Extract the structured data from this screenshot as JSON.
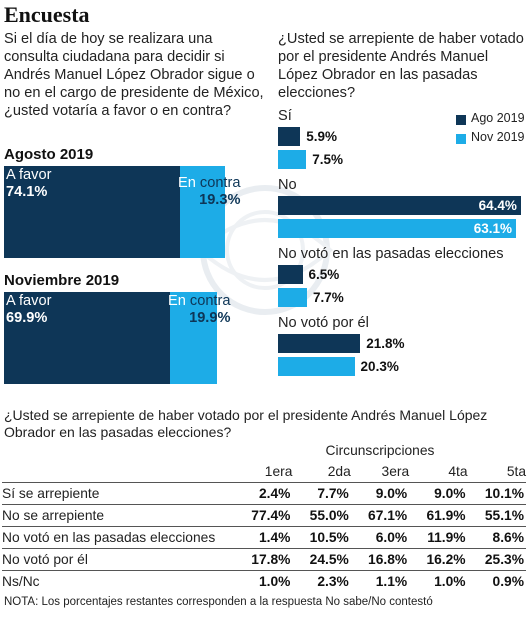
{
  "title": "Encuesta",
  "question_vote": "Si el día de hoy se realizara una consulta ciudadana para decidir si Andrés Manuel López Obrador sigue o no en el cargo de presidente de México, ¿usted votaría a favor o en contra?",
  "question_regret": "¿Usted se arrepiente de haber votado por el presidente Andrés Manuel López Obrador en las pasadas elecciones?",
  "question_table": "¿Usted se arrepiente de haber votado por el presidente Andrés Manuel López Obrador en las pasadas elecciones?",
  "note": "NOTA: Los porcentajes restantes corresponden a la respuesta No sabe/No contestó",
  "colors": {
    "dark": "#0e3657",
    "light": "#1dace7"
  },
  "chart_data": [
    {
      "type": "bar",
      "stacked": true,
      "categories": [
        "Agosto 2019",
        "Noviembre 2019"
      ],
      "series": [
        {
          "name": "A favor",
          "values": [
            74.1,
            69.9
          ]
        },
        {
          "name": "En contra",
          "values": [
            19.3,
            19.9
          ]
        }
      ],
      "labels": {
        "favor": "A favor",
        "contra_pre": "En ",
        "contra_post": "contra",
        "favor_values": [
          "74.1%",
          "69.9%"
        ],
        "contra_values": [
          "19.3%",
          "19.9%"
        ]
      }
    },
    {
      "type": "bar",
      "orientation": "horizontal",
      "categories": [
        "Sí",
        "No",
        "No votó en las pasadas elecciones",
        "No votó por él"
      ],
      "series": [
        {
          "name": "Ago 2019",
          "values": [
            5.9,
            64.4,
            6.5,
            21.8
          ]
        },
        {
          "name": "Nov 2019",
          "values": [
            7.5,
            63.1,
            7.7,
            20.3
          ]
        }
      ],
      "value_labels": [
        [
          "5.9%",
          "64.4%",
          "6.5%",
          "21.8%"
        ],
        [
          "7.5%",
          "63.1%",
          "7.7%",
          "20.3%"
        ]
      ],
      "legend": "top-right"
    },
    {
      "type": "table",
      "group_header": "Circunscripciones",
      "columns": [
        "1era",
        "2da",
        "3era",
        "4ta",
        "5ta"
      ],
      "rows": [
        {
          "label": "Sí se arrepiente",
          "values": [
            "2.4%",
            "7.7%",
            "9.0%",
            "9.0%",
            "10.1%"
          ]
        },
        {
          "label": "No se arrepiente",
          "values": [
            "77.4%",
            "55.0%",
            "67.1%",
            "61.9%",
            "55.1%"
          ]
        },
        {
          "label": "No votó en las pasadas elecciones",
          "values": [
            "1.4%",
            "10.5%",
            "6.0%",
            "11.9%",
            "8.6%"
          ]
        },
        {
          "label": "No votó por él",
          "values": [
            "17.8%",
            "24.5%",
            "16.8%",
            "16.2%",
            "25.3%"
          ]
        },
        {
          "label": "Ns/Nc",
          "values": [
            "1.0%",
            "2.3%",
            "1.1%",
            "1.0%",
            "0.9%"
          ]
        }
      ]
    }
  ]
}
